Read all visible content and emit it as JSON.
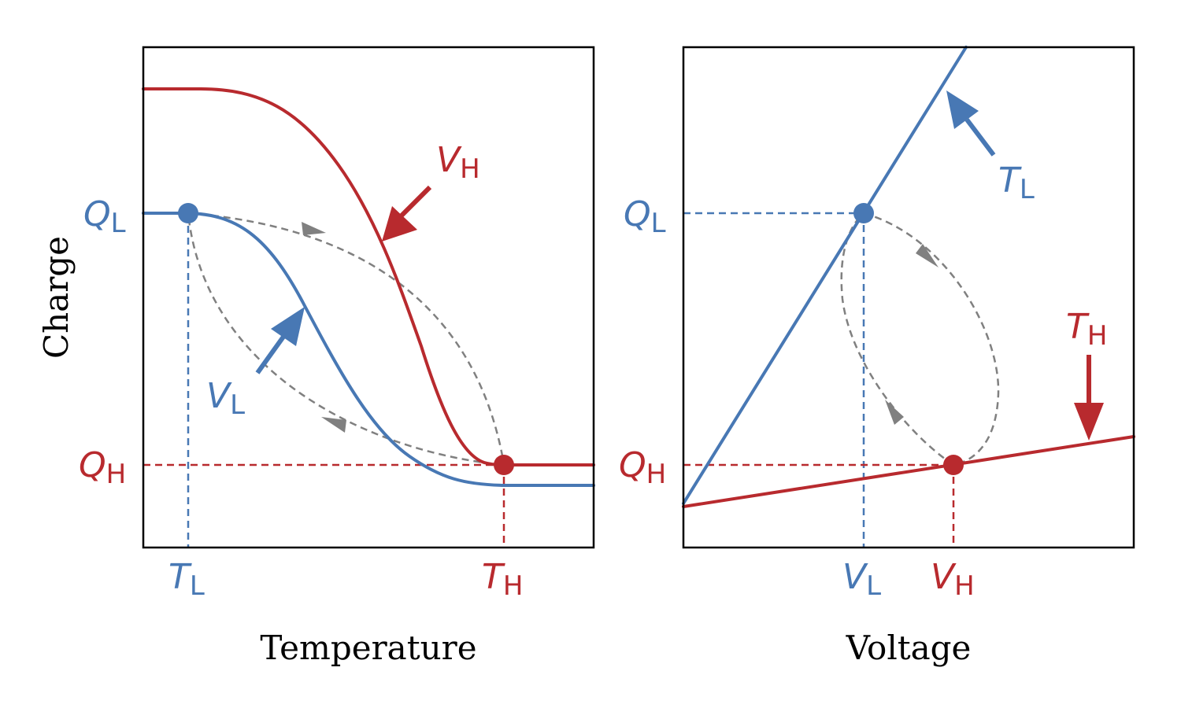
{
  "colors": {
    "low": "#4878b4",
    "high": "#b82a2e",
    "cycle": "#808080"
  },
  "ylabel": "Charge",
  "left_panel": {
    "xlabel": "Temperature",
    "x_tick_low": {
      "main": "T",
      "sub": "L"
    },
    "x_tick_high": {
      "main": "T",
      "sub": "H"
    },
    "y_tick_low": {
      "main": "Q",
      "sub": "L"
    },
    "y_tick_high": {
      "main": "Q",
      "sub": "H"
    },
    "curve_low_label": {
      "main": "V",
      "sub": "L"
    },
    "curve_high_label": {
      "main": "V",
      "sub": "H"
    }
  },
  "right_panel": {
    "xlabel": "Voltage",
    "x_tick_low": {
      "main": "V",
      "sub": "L"
    },
    "x_tick_high": {
      "main": "V",
      "sub": "H"
    },
    "y_tick_low": {
      "main": "Q",
      "sub": "L"
    },
    "y_tick_high": {
      "main": "Q",
      "sub": "H"
    },
    "line_low_label": {
      "main": "T",
      "sub": "L"
    },
    "line_high_label": {
      "main": "T",
      "sub": "H"
    }
  }
}
